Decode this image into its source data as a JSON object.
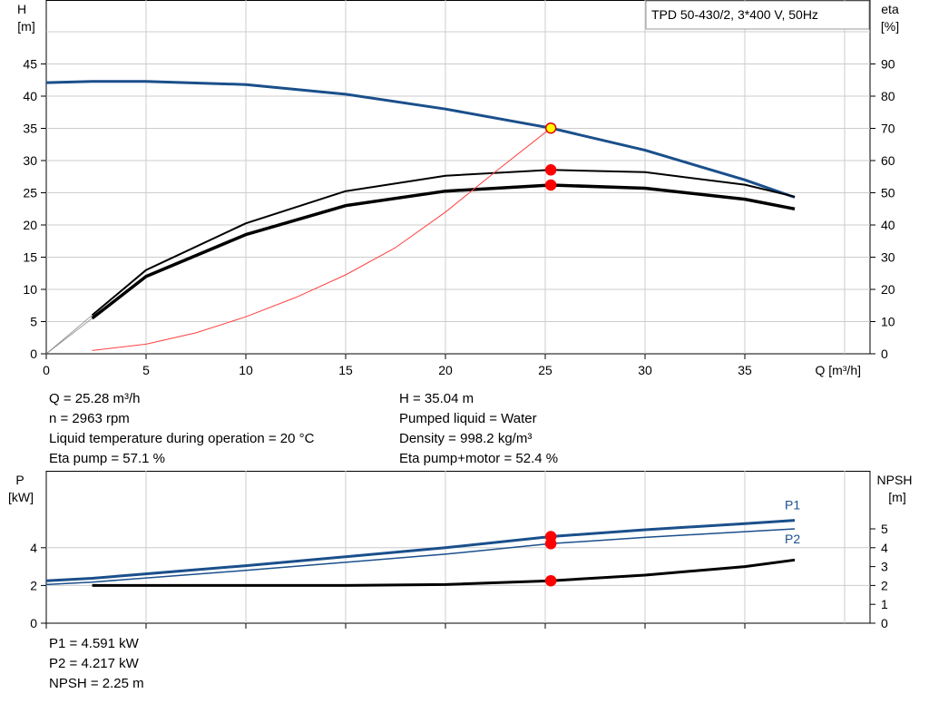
{
  "chart_data": [
    {
      "type": "line",
      "title": "TPD 50-430/2, 3*400 V, 50Hz",
      "xlabel": "Q [m³/h]",
      "ylabel_left": [
        "H",
        "[m]"
      ],
      "ylabel_right": [
        "eta",
        "[%]"
      ],
      "xlim": [
        0,
        40
      ],
      "ylim_left": [
        0,
        50
      ],
      "ylim_right": [
        0,
        100
      ],
      "x_ticks": [
        0,
        5,
        10,
        15,
        20,
        25,
        30,
        35
      ],
      "y_ticks_left": [
        0,
        5,
        10,
        15,
        20,
        25,
        30,
        35,
        40,
        45
      ],
      "y_ticks_right": [
        0,
        10,
        20,
        30,
        40,
        50,
        60,
        70,
        80,
        90
      ],
      "grid": true,
      "series": [
        {
          "axis": "left",
          "color": "#1a4f8b",
          "width": 3,
          "x": [
            0,
            2.3,
            5,
            10,
            15,
            20,
            25.28,
            30,
            35,
            37.5
          ],
          "y": [
            42.1,
            42.3,
            42.3,
            41.8,
            40.3,
            38.0,
            35.04,
            31.6,
            27.0,
            24.3
          ]
        },
        {
          "axis": "right",
          "color": "#000000",
          "width": 2,
          "x": [
            2.3,
            5,
            10,
            15,
            20,
            25.28,
            30,
            35,
            37.5
          ],
          "y": [
            12.0,
            26.0,
            40.5,
            50.5,
            55.3,
            57.1,
            56.4,
            52.5,
            48.8
          ]
        },
        {
          "axis": "right",
          "color": "#000000",
          "width": 3.5,
          "x": [
            2.3,
            5,
            10,
            15,
            20,
            25.28,
            30,
            35,
            37.5
          ],
          "y": [
            11.0,
            24.0,
            37.0,
            46.0,
            50.5,
            52.4,
            51.4,
            48.0,
            45.0
          ]
        },
        {
          "axis": "right",
          "color": "#ff4040",
          "width": 1,
          "x": [
            2.3,
            5,
            7.5,
            10,
            12.5,
            15,
            17.5,
            20,
            22.5,
            25.28
          ],
          "y": [
            1.0,
            3.0,
            6.5,
            11.5,
            17.5,
            24.5,
            33.0,
            44.0,
            56.5,
            70.08
          ]
        },
        {
          "axis": "left",
          "color": "#888888",
          "width": 0.8,
          "x": [
            0,
            2.3
          ],
          "y": [
            0,
            6.0
          ]
        },
        {
          "axis": "left",
          "color": "#888888",
          "width": 0.8,
          "x": [
            0,
            2.3
          ],
          "y": [
            0,
            5.5
          ]
        }
      ],
      "operating_points": [
        {
          "axis": "left",
          "x": 25.28,
          "y": 35.04,
          "fill": "#ffff00",
          "stroke": "#e00000"
        },
        {
          "axis": "right",
          "x": 25.28,
          "y": 57.1,
          "fill": "#ff0000",
          "stroke": "#ff0000"
        },
        {
          "axis": "right",
          "x": 25.28,
          "y": 52.4,
          "fill": "#ff0000",
          "stroke": "#ff0000"
        }
      ]
    },
    {
      "type": "line",
      "ylabel_left": [
        "P",
        "[kW]"
      ],
      "ylabel_right": [
        "NPSH",
        "[m]"
      ],
      "xlim": [
        0,
        40
      ],
      "ylim_left": [
        0,
        6
      ],
      "ylim_right": [
        0,
        6
      ],
      "y_ticks_left": [
        0,
        2,
        4
      ],
      "y_ticks_right": [
        0,
        1,
        2,
        3,
        4,
        5
      ],
      "grid": true,
      "series": [
        {
          "name": "P1",
          "axis": "left",
          "color": "#1a4f8b",
          "width": 3,
          "x": [
            0,
            2.3,
            10,
            20,
            25.28,
            30,
            35,
            37.5
          ],
          "y": [
            2.25,
            2.38,
            3.05,
            4.0,
            4.591,
            4.95,
            5.28,
            5.45
          ]
        },
        {
          "name": "P2",
          "axis": "left",
          "color": "#1a4f8b",
          "width": 1.5,
          "x": [
            0,
            2.3,
            10,
            20,
            25.28,
            30,
            35,
            37.5
          ],
          "y": [
            2.05,
            2.18,
            2.8,
            3.66,
            4.217,
            4.55,
            4.85,
            5.0
          ]
        },
        {
          "axis": "right",
          "color": "#000000",
          "width": 3,
          "x": [
            2.3,
            10,
            15,
            20,
            25.28,
            30,
            35,
            37.5
          ],
          "y": [
            2.0,
            2.0,
            2.0,
            2.05,
            2.25,
            2.55,
            3.0,
            3.35
          ]
        }
      ],
      "operating_points": [
        {
          "axis": "left",
          "x": 25.28,
          "y": 4.591
        },
        {
          "axis": "left",
          "x": 25.28,
          "y": 4.217
        },
        {
          "axis": "right",
          "x": 25.28,
          "y": 2.25
        }
      ]
    }
  ],
  "info": {
    "left": [
      "Q = 25.28 m³/h",
      "n = 2963 rpm",
      "Liquid temperature during operation = 20 °C",
      "Eta pump = 57.1 %"
    ],
    "right": [
      "H = 35.04 m",
      "Pumped liquid = Water",
      "Density = 998.2 kg/m³",
      "Eta pump+motor = 52.4 %"
    ],
    "bottom": [
      "P1 = 4.591 kW",
      "P2 = 4.217 kW",
      "NPSH = 2.25 m"
    ]
  }
}
